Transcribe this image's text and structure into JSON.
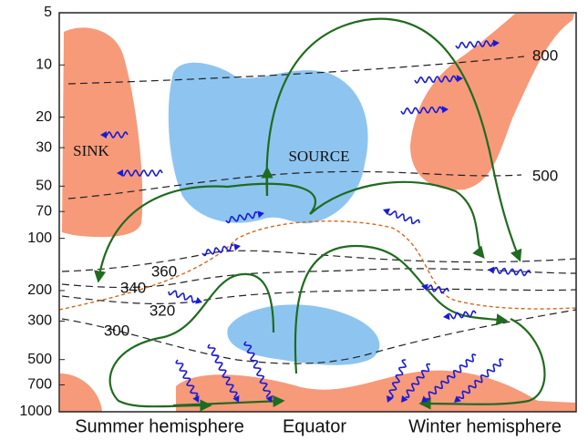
{
  "axis": {
    "scale": "log",
    "range": [
      5,
      1000
    ],
    "ticks": [
      5,
      10,
      20,
      30,
      50,
      70,
      100,
      200,
      300,
      500,
      700,
      1000
    ]
  },
  "x_labels": [
    "Summer hemisphere",
    "Equator",
    "Winter hemisphere"
  ],
  "regions": [
    "SINK",
    "SOURCE"
  ],
  "contour_labels": [
    800,
    500,
    360,
    340,
    320,
    300
  ]
}
